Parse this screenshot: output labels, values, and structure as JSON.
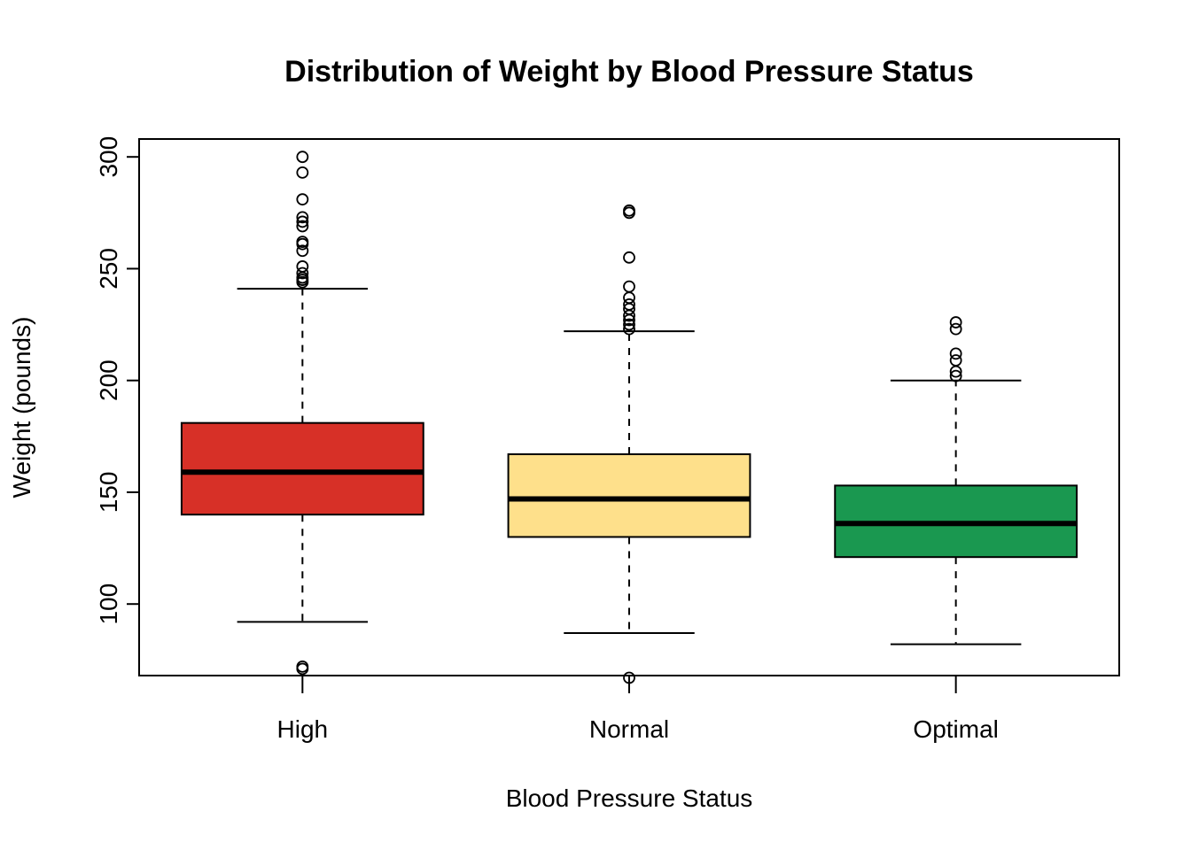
{
  "chart_data": {
    "type": "boxplot",
    "title": "Distribution of Weight by Blood Pressure Status",
    "xlabel": "Blood Pressure Status",
    "ylabel": "Weight (pounds)",
    "categories": [
      "High",
      "Normal",
      "Optimal"
    ],
    "ylim": [
      68,
      308
    ],
    "yticks": [
      100,
      150,
      200,
      250,
      300
    ],
    "grid": false,
    "legend": "none",
    "boxes": [
      {
        "category": "High",
        "color": "#D73027",
        "whisker_low": 92,
        "q1": 140,
        "median": 159,
        "q3": 181,
        "whisker_high": 241,
        "outliers": [
          72,
          71,
          244,
          245,
          246,
          248,
          251,
          258,
          261,
          262,
          269,
          271,
          273,
          281,
          293,
          300
        ]
      },
      {
        "category": "Normal",
        "color": "#FEE08B",
        "whisker_low": 87,
        "q1": 130,
        "median": 147,
        "q3": 167,
        "whisker_high": 222,
        "outliers": [
          67,
          223,
          225,
          227,
          229,
          232,
          234,
          237,
          242,
          255,
          275,
          276
        ]
      },
      {
        "category": "Optimal",
        "color": "#1A9850",
        "whisker_low": 82,
        "q1": 121,
        "median": 136,
        "q3": 153,
        "whisker_high": 200,
        "outliers": [
          202,
          204,
          209,
          212,
          223,
          226
        ]
      }
    ]
  }
}
